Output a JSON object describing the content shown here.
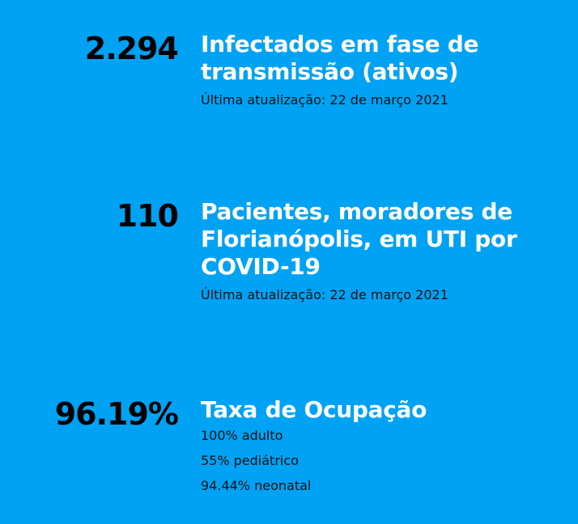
{
  "stats": [
    {
      "value": "2.294",
      "title_lines": [
        "Infectados em fase de",
        "transmissão (ativos)"
      ],
      "updated": "Última atualização: 22 de março 2021"
    },
    {
      "value": "110",
      "title_lines": [
        "Pacientes, moradores de",
        "Florianópolis, em UTI por",
        "COVID-19"
      ],
      "updated": "Última atualização: 22 de março 2021"
    },
    {
      "value": "96.19%",
      "title_lines": [
        "Taxa de Ocupação"
      ],
      "details": [
        "100% adulto",
        "55% pediátrico",
        "94.44% neonatal"
      ]
    }
  ],
  "colors": {
    "background": "#00a2f4",
    "number": "#000000",
    "title": "#ffffff",
    "meta": "#111111"
  }
}
